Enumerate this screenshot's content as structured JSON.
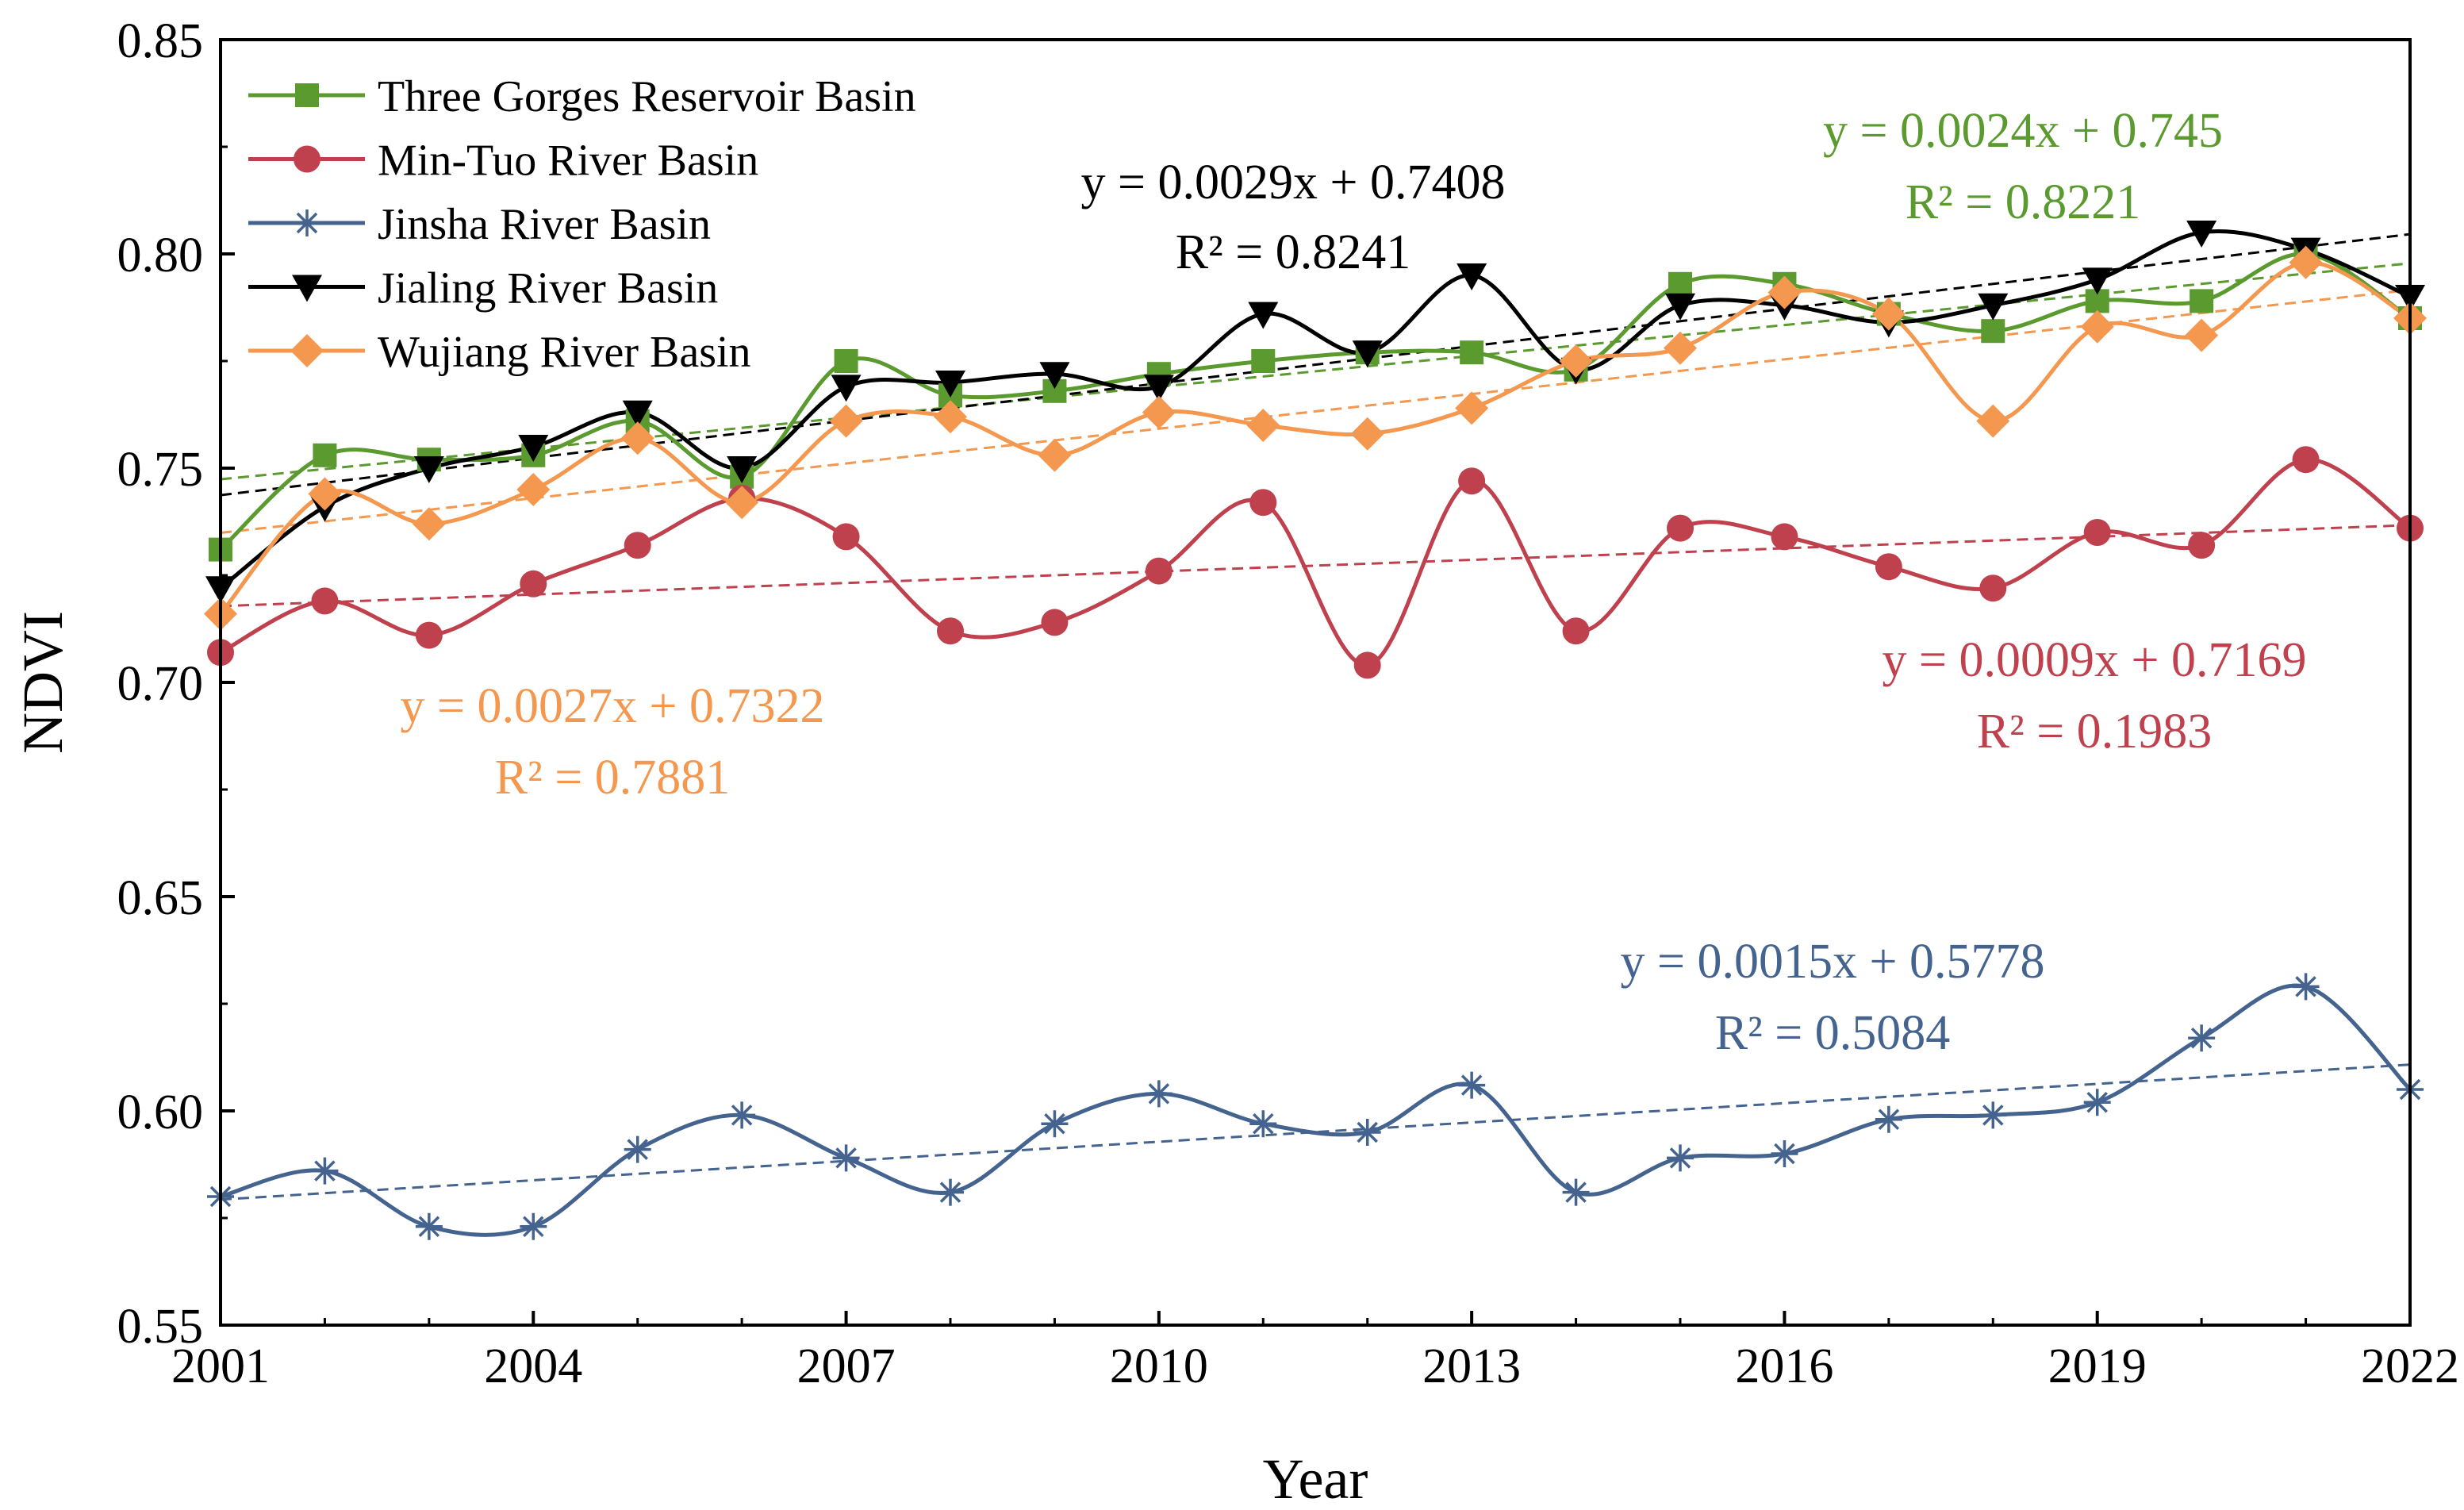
{
  "chart_data": {
    "type": "line",
    "xlabel": "Year",
    "ylabel": "NDVI",
    "xlim": [
      2001,
      2022
    ],
    "ylim": [
      0.55,
      0.85
    ],
    "xticks": [
      2001,
      2004,
      2007,
      2010,
      2013,
      2016,
      2019,
      2022
    ],
    "xtick_labels": [
      "2001",
      "2004",
      "2007",
      "2010",
      "2013",
      "2016",
      "2019",
      "2022"
    ],
    "yticks": [
      0.55,
      0.6,
      0.65,
      0.7,
      0.75,
      0.8,
      0.85
    ],
    "ytick_labels": [
      "0.55",
      "0.60",
      "0.65",
      "0.70",
      "0.75",
      "0.80",
      "0.85"
    ],
    "legend_position": "top-left",
    "x": [
      2001,
      2002,
      2003,
      2004,
      2005,
      2006,
      2007,
      2008,
      2009,
      2010,
      2011,
      2012,
      2013,
      2014,
      2015,
      2016,
      2017,
      2018,
      2019,
      2020,
      2021,
      2022
    ],
    "series": [
      {
        "key": "three-gorges",
        "name": "Three Gorges Reservoir Basin",
        "color": "#5b9a2e",
        "marker": "square",
        "values": [
          0.731,
          0.753,
          0.752,
          0.753,
          0.761,
          0.748,
          0.775,
          0.767,
          0.768,
          0.772,
          0.775,
          0.777,
          0.777,
          0.773,
          0.793,
          0.793,
          0.786,
          0.782,
          0.789,
          0.789,
          0.8,
          0.785
        ],
        "trend": {
          "slope": 0.0024,
          "intercept": 0.745,
          "equation": "y = 0.0024x + 0.745",
          "r2": "R² = 0.8221"
        }
      },
      {
        "key": "min-tuo",
        "name": "Min-Tuo River Basin",
        "color": "#c0414e",
        "marker": "circle",
        "values": [
          0.707,
          0.719,
          0.711,
          0.723,
          0.732,
          0.743,
          0.734,
          0.712,
          0.714,
          0.726,
          0.742,
          0.704,
          0.747,
          0.712,
          0.736,
          0.734,
          0.727,
          0.722,
          0.735,
          0.732,
          0.752,
          0.736
        ],
        "trend": {
          "slope": 0.0009,
          "intercept": 0.7169,
          "equation": "y = 0.0009x + 0.7169",
          "r2": "R² = 0.1983"
        }
      },
      {
        "key": "jinsha",
        "name": "Jinsha River Basin",
        "color": "#44638f",
        "marker": "star",
        "values": [
          0.58,
          0.586,
          0.573,
          0.573,
          0.591,
          0.599,
          0.589,
          0.581,
          0.597,
          0.604,
          0.597,
          0.595,
          0.606,
          0.581,
          0.589,
          0.59,
          0.598,
          0.599,
          0.602,
          0.617,
          0.629,
          0.605
        ],
        "trend": {
          "slope": 0.0015,
          "intercept": 0.5778,
          "equation": "y = 0.0015x + 0.5778",
          "r2": "R² = 0.5084"
        }
      },
      {
        "key": "jialing",
        "name": "Jialing River Basin",
        "color": "#000000",
        "marker": "triangle-down",
        "values": [
          0.722,
          0.741,
          0.75,
          0.755,
          0.763,
          0.75,
          0.769,
          0.77,
          0.772,
          0.769,
          0.786,
          0.777,
          0.795,
          0.773,
          0.788,
          0.788,
          0.784,
          0.788,
          0.794,
          0.805,
          0.801,
          0.79
        ],
        "trend": {
          "slope": 0.0029,
          "intercept": 0.7408,
          "equation": "y = 0.0029x + 0.7408",
          "r2": "R² = 0.8241"
        }
      },
      {
        "key": "wujiang",
        "name": "Wujiang River Basin",
        "color": "#f4984f",
        "marker": "diamond",
        "values": [
          0.716,
          0.744,
          0.737,
          0.745,
          0.757,
          0.742,
          0.761,
          0.762,
          0.753,
          0.763,
          0.76,
          0.758,
          0.764,
          0.775,
          0.778,
          0.791,
          0.786,
          0.761,
          0.783,
          0.781,
          0.798,
          0.785
        ],
        "trend": {
          "slope": 0.0027,
          "intercept": 0.7322,
          "equation": "y = 0.0027x + 0.7322",
          "r2": "R² = 0.7881"
        }
      }
    ]
  }
}
